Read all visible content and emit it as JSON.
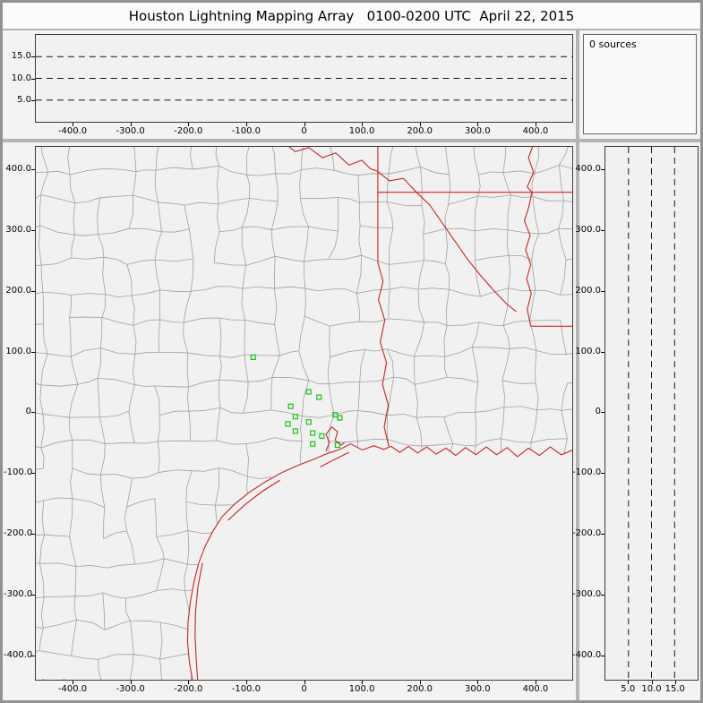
{
  "window": {
    "title": "Houston Lightning Mapping Array   0100-0200 UTC  April 22, 2015"
  },
  "sources": {
    "label": "0 sources"
  },
  "colors": {
    "state_border_red": "#cc2222",
    "county_gray": "#a0a0a0",
    "station_green": "#00c400",
    "dash_black": "#161616",
    "panel_bg": "#f1f1f1"
  },
  "chart_data": [
    {
      "type": "scatter",
      "name": "altitude-vs-east-west",
      "xlim": [
        -465,
        465
      ],
      "ylim": [
        0,
        20
      ],
      "xticks": [
        [
          -400,
          "-400.0"
        ],
        [
          -300,
          "-300.0"
        ],
        [
          -200,
          "-200.0"
        ],
        [
          -100,
          "-100.0"
        ],
        [
          0,
          "0"
        ],
        [
          100,
          "100.0"
        ],
        [
          200,
          "200.0"
        ],
        [
          300,
          "300.0"
        ],
        [
          400,
          "400.0"
        ]
      ],
      "yticks": [
        [
          15,
          "15.0"
        ],
        [
          10,
          "10.0"
        ],
        [
          5,
          "5.0"
        ]
      ],
      "grid": "dashed-horizontal",
      "grid_alts": [
        5,
        10,
        15
      ],
      "points": []
    },
    {
      "type": "scatter",
      "name": "plan-view-map",
      "xlim": [
        -465,
        465
      ],
      "ylim": [
        -441,
        438
      ],
      "xticks": [
        [
          -400,
          "-400.0"
        ],
        [
          -300,
          "-300.0"
        ],
        [
          -200,
          "-200.0"
        ],
        [
          -100,
          "-100.0"
        ],
        [
          0,
          "0"
        ],
        [
          100,
          "100.0"
        ],
        [
          200,
          "200.0"
        ],
        [
          300,
          "300.0"
        ],
        [
          400,
          "400.0"
        ]
      ],
      "yticks": [
        [
          400,
          "400.0"
        ],
        [
          300,
          "300.0"
        ],
        [
          200,
          "200.0"
        ],
        [
          100,
          "100.0"
        ],
        [
          0,
          "0"
        ],
        [
          -100,
          "-100.0"
        ],
        [
          -200,
          "-200.0"
        ],
        [
          -300,
          "-300.0"
        ],
        [
          -400,
          "-400.0"
        ]
      ],
      "stations": [
        [
          -88,
          91
        ],
        [
          8,
          34
        ],
        [
          26,
          25
        ],
        [
          -23,
          10
        ],
        [
          -15,
          -7
        ],
        [
          -28,
          -19
        ],
        [
          8,
          -16
        ],
        [
          -15,
          -31
        ],
        [
          15,
          -34
        ],
        [
          54,
          -4
        ],
        [
          62,
          -9
        ],
        [
          31,
          -39
        ],
        [
          15,
          -52
        ],
        [
          58,
          -54
        ]
      ],
      "map": {
        "county_mesh": {
          "cell_km": 50,
          "jitter_km": 18,
          "mid_jitter_km": 8,
          "seed": 11,
          "skip_prob": 0.13
        },
        "red_lines": {
          "coastline": [
            [
              466,
              -62
            ],
            [
              446,
              -70
            ],
            [
              427,
              -57
            ],
            [
              408,
              -71
            ],
            [
              389,
              -59
            ],
            [
              370,
              -73
            ],
            [
              352,
              -58
            ],
            [
              334,
              -70
            ],
            [
              316,
              -57
            ],
            [
              298,
              -70
            ],
            [
              280,
              -58
            ],
            [
              263,
              -71
            ],
            [
              246,
              -59
            ],
            [
              229,
              -69
            ],
            [
              213,
              -57
            ],
            [
              197,
              -67
            ],
            [
              181,
              -56
            ],
            [
              166,
              -66
            ],
            [
              151,
              -56
            ],
            [
              138,
              -61
            ],
            [
              121,
              -55
            ],
            [
              101,
              -62
            ],
            [
              81,
              -52
            ],
            [
              62,
              -61
            ],
            [
              40,
              -68
            ],
            [
              15,
              -78
            ],
            [
              -12,
              -88
            ],
            [
              -40,
              -100
            ],
            [
              -68,
              -115
            ],
            [
              -95,
              -132
            ],
            [
              -120,
              -151
            ],
            [
              -142,
              -172
            ],
            [
              -158,
              -196
            ],
            [
              -172,
              -222
            ],
            [
              -183,
              -250
            ],
            [
              -191,
              -280
            ],
            [
              -197,
              -312
            ],
            [
              -201,
              -345
            ],
            [
              -202,
              -378
            ],
            [
              -199,
              -410
            ],
            [
              -194,
              -438
            ],
            [
              -192,
              -450
            ],
            [
              -206,
              -455
            ],
            [
              -223,
              -444
            ],
            [
              -241,
              -456
            ],
            [
              -259,
              -444
            ],
            [
              -277,
              -455
            ],
            [
              -296,
              -443
            ],
            [
              -316,
              -454
            ],
            [
              -336,
              -443
            ],
            [
              -356,
              -453
            ],
            [
              -376,
              -442
            ],
            [
              -396,
              -452
            ],
            [
              -416,
              -441
            ],
            [
              -436,
              -450
            ],
            [
              -452,
              -441
            ],
            [
              -466,
              -448
            ]
          ],
          "padre_island": [
            [
              -176,
              -248
            ],
            [
              -184,
              -288
            ],
            [
              -188,
              -328
            ],
            [
              -189,
              -368
            ],
            [
              -187,
              -408
            ],
            [
              -184,
              -447
            ]
          ],
          "matagorda_island": [
            [
              -42,
              -112
            ],
            [
              -72,
              -130
            ],
            [
              -102,
              -152
            ],
            [
              -132,
              -178
            ]
          ],
          "galveston_island": [
            [
              78,
              -66
            ],
            [
              52,
              -78
            ],
            [
              28,
              -90
            ]
          ],
          "galveston_bay": [
            [
              38,
              -64
            ],
            [
              44,
              -50
            ],
            [
              38,
              -36
            ],
            [
              48,
              -24
            ],
            [
              58,
              -32
            ],
            [
              54,
              -46
            ],
            [
              64,
              -54
            ],
            [
              70,
              -50
            ]
          ],
          "red_river": [
            [
              -35,
              445
            ],
            [
              -15,
              430
            ],
            [
              8,
              437
            ],
            [
              32,
              420
            ],
            [
              55,
              428
            ],
            [
              78,
              408
            ],
            [
              100,
              416
            ],
            [
              115,
              402
            ],
            [
              127,
              398
            ]
          ],
          "texas_arkansas_border": [
            [
              128,
              445
            ],
            [
              128,
              247
            ]
          ],
          "sabine_river": [
            [
              128,
              247
            ],
            [
              137,
              216
            ],
            [
              129,
              186
            ],
            [
              140,
              152
            ],
            [
              132,
              116
            ],
            [
              143,
              82
            ],
            [
              136,
              46
            ],
            [
              146,
              12
            ],
            [
              139,
              -24
            ],
            [
              147,
              -56
            ]
          ],
          "arkansas_louisiana_border": [
            [
              128,
              363
            ],
            [
              466,
              363
            ]
          ],
          "red_river_louisiana": [
            [
              127,
              398
            ],
            [
              148,
              382
            ],
            [
              172,
              386
            ],
            [
              196,
              362
            ],
            [
              218,
              342
            ],
            [
              240,
              312
            ],
            [
              262,
              282
            ],
            [
              284,
              252
            ],
            [
              306,
              226
            ],
            [
              328,
              202
            ],
            [
              350,
              180
            ],
            [
              368,
              166
            ]
          ],
          "mississippi_river": [
            [
              399,
              445
            ],
            [
              389,
              420
            ],
            [
              398,
              396
            ],
            [
              387,
              372
            ],
            [
              395,
              363
            ],
            [
              390,
              340
            ],
            [
              382,
              316
            ],
            [
              392,
              292
            ],
            [
              384,
              268
            ],
            [
              393,
              244
            ],
            [
              386,
              220
            ],
            [
              394,
              196
            ],
            [
              387,
              170
            ],
            [
              393,
              142
            ]
          ],
          "louisiana_mississippi_border": [
            [
              393,
              142
            ],
            [
              466,
              142
            ]
          ]
        }
      }
    },
    {
      "type": "scatter",
      "name": "altitude-vs-north-south",
      "xlim": [
        0,
        20
      ],
      "ylim": [
        -441,
        438
      ],
      "xticks": [
        [
          5,
          "5.0"
        ],
        [
          10,
          "10.0"
        ],
        [
          15,
          "15.0"
        ]
      ],
      "yticks": [
        [
          400,
          "400.0"
        ],
        [
          300,
          "300.0"
        ],
        [
          200,
          "200.0"
        ],
        [
          100,
          "100.0"
        ],
        [
          0,
          "0"
        ],
        [
          -100,
          "-100.0"
        ],
        [
          -200,
          "-200.0"
        ],
        [
          -300,
          "-300.0"
        ],
        [
          -400,
          "-400.0"
        ]
      ],
      "grid": "dashed-vertical",
      "grid_alts": [
        5,
        10,
        15
      ],
      "points": []
    }
  ]
}
